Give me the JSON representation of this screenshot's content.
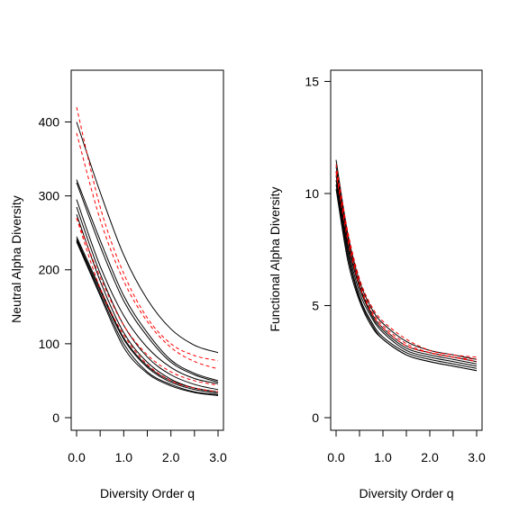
{
  "chart_data": [
    {
      "type": "line",
      "xlabel": "Diversity Order q",
      "ylabel": "Neutral Alpha Diversity",
      "xlim": [
        0,
        3
      ],
      "ylim": [
        0,
        470
      ],
      "xticks": [
        0,
        0.5,
        1,
        1.5,
        2,
        2.5,
        3
      ],
      "xtick_labels": [
        "0.0",
        "",
        "1.0",
        "",
        "2.0",
        "",
        "3.0"
      ],
      "yticks": [
        0,
        100,
        200,
        300,
        400
      ],
      "ytick_labels": [
        "0",
        "100",
        "200",
        "300",
        "400"
      ],
      "grid": false,
      "legend": "none",
      "colors": {
        "solid": "#000000",
        "dashed": "#ff0000"
      },
      "series": [
        {
          "style": "solid",
          "x": [
            0,
            0.5,
            1,
            1.5,
            2,
            2.5,
            3
          ],
          "y": [
            400,
            305,
            220,
            160,
            120,
            98,
            88
          ]
        },
        {
          "style": "solid",
          "x": [
            0,
            0.5,
            1,
            1.5,
            2,
            2.5,
            3
          ],
          "y": [
            322,
            240,
            165,
            115,
            78,
            60,
            50
          ]
        },
        {
          "style": "solid",
          "x": [
            0,
            0.5,
            1,
            1.5,
            2,
            2.5,
            3
          ],
          "y": [
            318,
            232,
            158,
            110,
            75,
            58,
            48
          ]
        },
        {
          "style": "solid",
          "x": [
            0,
            0.5,
            1,
            1.5,
            2,
            2.5,
            3
          ],
          "y": [
            295,
            205,
            138,
            95,
            68,
            53,
            46
          ]
        },
        {
          "style": "solid",
          "x": [
            0,
            0.5,
            1,
            1.5,
            2,
            2.5,
            3
          ],
          "y": [
            285,
            195,
            125,
            82,
            58,
            45,
            38
          ]
        },
        {
          "style": "solid",
          "x": [
            0,
            0.5,
            1,
            1.5,
            2,
            2.5,
            3
          ],
          "y": [
            275,
            185,
            115,
            75,
            52,
            40,
            35
          ]
        },
        {
          "style": "solid",
          "x": [
            0,
            0.5,
            1,
            1.5,
            2,
            2.5,
            3
          ],
          "y": [
            245,
            175,
            108,
            70,
            50,
            40,
            35
          ]
        },
        {
          "style": "solid",
          "x": [
            0,
            0.5,
            1,
            1.5,
            2,
            2.5,
            3
          ],
          "y": [
            242,
            172,
            106,
            68,
            48,
            38,
            33
          ]
        },
        {
          "style": "solid",
          "x": [
            0,
            0.5,
            1,
            1.5,
            2,
            2.5,
            3
          ],
          "y": [
            240,
            168,
            100,
            62,
            45,
            35,
            31
          ]
        },
        {
          "style": "solid",
          "x": [
            0,
            0.5,
            1,
            1.5,
            2,
            2.5,
            3
          ],
          "y": [
            238,
            165,
            95,
            60,
            43,
            34,
            30
          ]
        },
        {
          "style": "dashed",
          "x": [
            0,
            0.5,
            1,
            1.5,
            2,
            2.5,
            3
          ],
          "y": [
            420,
            285,
            195,
            135,
            100,
            84,
            77
          ]
        },
        {
          "style": "dashed",
          "x": [
            0,
            0.5,
            1,
            1.5,
            2,
            2.5,
            3
          ],
          "y": [
            385,
            268,
            185,
            130,
            95,
            76,
            66
          ]
        },
        {
          "style": "dashed",
          "x": [
            0,
            0.5,
            1,
            1.5,
            2,
            2.5,
            3
          ],
          "y": [
            270,
            190,
            125,
            85,
            62,
            50,
            44
          ]
        },
        {
          "style": "dashed",
          "x": [
            0,
            0.5,
            1,
            1.5,
            2,
            2.5,
            3
          ],
          "y": [
            270,
            175,
            112,
            72,
            50,
            40,
            35
          ]
        }
      ]
    },
    {
      "type": "line",
      "xlabel": "Diversity Order q",
      "ylabel": "Functional Alpha Diversity",
      "xlim": [
        0,
        3
      ],
      "ylim": [
        0,
        15.5
      ],
      "xticks": [
        0,
        0.5,
        1,
        1.5,
        2,
        2.5,
        3
      ],
      "xtick_labels": [
        "0.0",
        "",
        "1.0",
        "",
        "2.0",
        "",
        "3.0"
      ],
      "yticks": [
        0,
        5,
        10,
        15
      ],
      "ytick_labels": [
        "0",
        "5",
        "10",
        "15"
      ],
      "grid": false,
      "legend": "none",
      "colors": {
        "solid": "#000000",
        "dashed": "#ff0000"
      },
      "series": [
        {
          "style": "solid",
          "x": [
            0,
            0.25,
            0.5,
            0.75,
            1,
            1.5,
            2,
            2.5,
            3
          ],
          "y": [
            11.5,
            8.2,
            6.1,
            4.9,
            4.2,
            3.4,
            3.0,
            2.8,
            2.6
          ]
        },
        {
          "style": "solid",
          "x": [
            0,
            0.25,
            0.5,
            0.75,
            1,
            1.5,
            2,
            2.5,
            3
          ],
          "y": [
            11.2,
            8.0,
            5.9,
            4.7,
            4.0,
            3.2,
            2.9,
            2.7,
            2.5
          ]
        },
        {
          "style": "solid",
          "x": [
            0,
            0.25,
            0.5,
            0.75,
            1,
            1.5,
            2,
            2.5,
            3
          ],
          "y": [
            11.0,
            7.8,
            5.8,
            4.6,
            3.9,
            3.1,
            2.8,
            2.6,
            2.4
          ]
        },
        {
          "style": "solid",
          "x": [
            0,
            0.25,
            0.5,
            0.75,
            1,
            1.5,
            2,
            2.5,
            3
          ],
          "y": [
            10.8,
            7.6,
            5.6,
            4.5,
            3.8,
            3.0,
            2.7,
            2.5,
            2.3
          ]
        },
        {
          "style": "solid",
          "x": [
            0,
            0.25,
            0.5,
            0.75,
            1,
            1.5,
            2,
            2.5,
            3
          ],
          "y": [
            10.6,
            7.4,
            5.4,
            4.3,
            3.6,
            2.9,
            2.6,
            2.4,
            2.2
          ]
        },
        {
          "style": "solid",
          "x": [
            0,
            0.25,
            0.5,
            0.75,
            1,
            1.5,
            2,
            2.5,
            3
          ],
          "y": [
            10.4,
            7.2,
            5.3,
            4.2,
            3.5,
            2.8,
            2.5,
            2.3,
            2.1
          ]
        },
        {
          "style": "solid",
          "x": [
            0,
            0.25,
            0.5,
            0.75,
            1,
            1.5,
            2,
            2.5,
            3
          ],
          "y": [
            10.2,
            7.0,
            5.2,
            4.1,
            3.5,
            2.8,
            2.5,
            2.3,
            2.1
          ]
        },
        {
          "style": "dashed",
          "x": [
            0,
            0.25,
            0.5,
            0.75,
            1,
            1.5,
            2,
            2.5,
            3
          ],
          "y": [
            11.3,
            8.3,
            6.2,
            5.0,
            4.3,
            3.5,
            3.0,
            2.8,
            2.7
          ]
        },
        {
          "style": "dashed",
          "x": [
            0,
            0.25,
            0.5,
            0.75,
            1,
            1.5,
            2,
            2.5,
            3
          ],
          "y": [
            11.0,
            8.1,
            6.0,
            4.8,
            4.1,
            3.3,
            2.9,
            2.7,
            2.6
          ]
        },
        {
          "style": "dashed",
          "x": [
            0,
            0.25,
            0.5,
            0.75,
            1,
            1.5,
            2,
            2.5,
            3
          ],
          "y": [
            10.9,
            7.9,
            5.9,
            4.7,
            4.0,
            3.2,
            2.9,
            2.7,
            2.5
          ]
        }
      ]
    }
  ]
}
